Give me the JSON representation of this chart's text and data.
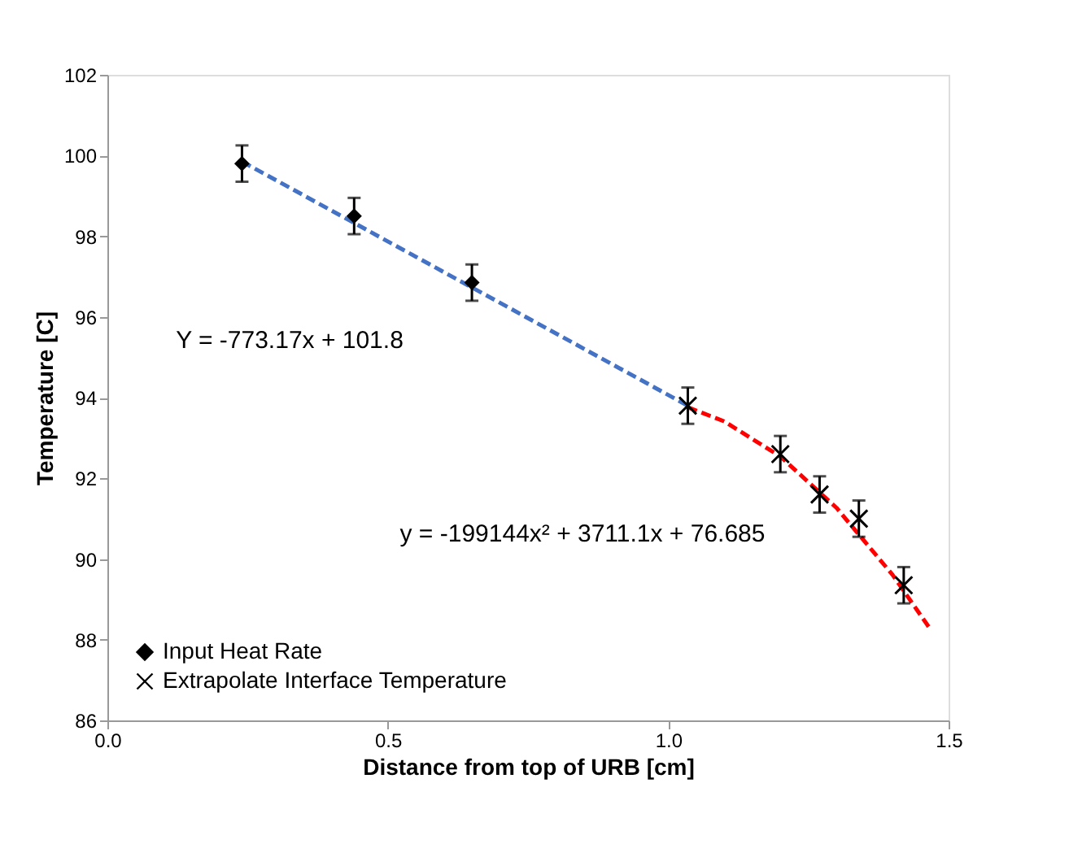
{
  "chart_data": {
    "type": "scatter",
    "xlabel": "Distance from top of URB [cm]",
    "ylabel": "Temperature [C]",
    "xlim": [
      0,
      1.5
    ],
    "xticks": [
      {
        "value": 0,
        "label": "0.0"
      },
      {
        "value": 0.5,
        "label": "0.5"
      },
      {
        "value": 1,
        "label": "1.0"
      },
      {
        "value": 1.5,
        "label": "1.5"
      }
    ],
    "ylim": [
      86,
      102
    ],
    "yticks": [
      86,
      88,
      90,
      92,
      94,
      96,
      98,
      100,
      102
    ],
    "grid": false,
    "legend": "bottom left",
    "annotations": [
      "Y = -773.17x + 101.8",
      "y = -199144x² + 3711.1x + 76.685"
    ],
    "series": [
      {
        "name": "Input Heat Rate",
        "type": "scatter",
        "marker": "diamond",
        "color": "#000000",
        "x": [
          0.24,
          0.44,
          0.65
        ],
        "values": [
          99.8,
          98.5,
          96.85
        ],
        "errors": [
          0.45,
          0.45,
          0.45
        ]
      },
      {
        "name": "Extrapolate Interface Temperature",
        "type": "scatter",
        "marker": "cross",
        "color": "#000000",
        "x": [
          1.035,
          1.2,
          1.27,
          1.34,
          1.42
        ],
        "values": [
          93.8,
          92.6,
          91.6,
          91.0,
          89.35
        ],
        "errors": [
          0.45,
          0.45,
          0.45,
          0.45,
          0.45
        ]
      },
      {
        "type": "line",
        "line_style": "dashed",
        "marker": "none",
        "color": "#4472c4",
        "x": [
          0.24,
          1.035
        ],
        "values": [
          99.85,
          93.8
        ]
      },
      {
        "type": "line",
        "line_style": "dashed",
        "marker": "none",
        "color": "#ff0000",
        "x": [
          1.035,
          1.1,
          1.2,
          1.3,
          1.4,
          1.467
        ],
        "values": [
          93.76,
          93.41,
          92.54,
          91.27,
          89.61,
          88.27
        ]
      }
    ]
  }
}
